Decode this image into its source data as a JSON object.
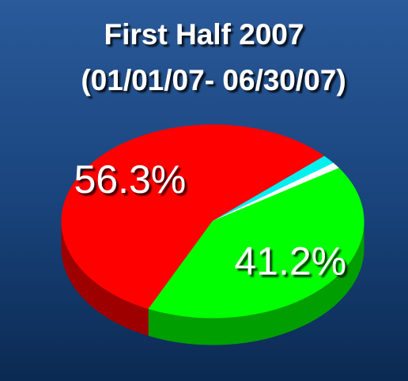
{
  "chart_data": {
    "type": "pie",
    "title": "First Half 2007",
    "subtitle": "(01/01/07- 06/30/07)",
    "categories": [
      null,
      null,
      null,
      null
    ],
    "values": [
      56.3,
      1.5,
      1.0,
      41.2
    ],
    "value_labels": [
      "56.3%",
      null,
      null,
      "41.2%"
    ],
    "colors": [
      "#ff0000",
      "#00f0f0",
      "#ffffff",
      "#00ff00"
    ]
  }
}
